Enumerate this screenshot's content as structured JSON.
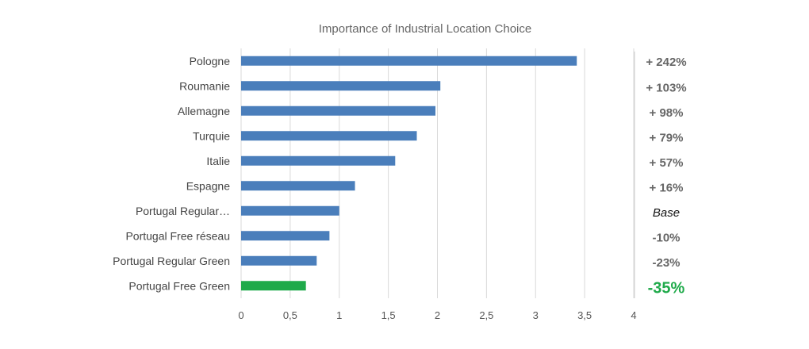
{
  "chart_data": {
    "type": "bar",
    "orientation": "horizontal",
    "title": "Importance of Industrial Location Choice",
    "categories": [
      "Pologne",
      "Roumanie",
      "Allemagne",
      "Turquie",
      "Italie",
      "Espagne",
      "Portugal Regular…",
      "Portugal Free réseau",
      "Portugal Regular Green",
      "Portugal Free Green"
    ],
    "values": [
      3.42,
      2.03,
      1.98,
      1.79,
      1.57,
      1.16,
      1.0,
      0.9,
      0.77,
      0.66
    ],
    "colors": [
      "#4a7ebb",
      "#4a7ebb",
      "#4a7ebb",
      "#4a7ebb",
      "#4a7ebb",
      "#4a7ebb",
      "#4a7ebb",
      "#4a7ebb",
      "#4a7ebb",
      "#1faa4a"
    ],
    "annotations": [
      "+ 242%",
      "+ 103%",
      "+ 98%",
      "+ 79%",
      "+ 57%",
      "+ 16%",
      "Base",
      "-10%",
      "-23%",
      "-35%"
    ],
    "annotation_styles": [
      "normal",
      "normal",
      "normal",
      "normal",
      "normal",
      "normal",
      "base",
      "normal",
      "normal",
      "highlight"
    ],
    "xlim": [
      0,
      4
    ],
    "xticks": [
      "0",
      "0,5",
      "1",
      "1,5",
      "2",
      "2,5",
      "3",
      "3,5",
      "4"
    ],
    "xtick_values": [
      0,
      0.5,
      1,
      1.5,
      2,
      2.5,
      3,
      3.5,
      4
    ],
    "xlabel": "",
    "ylabel": "",
    "grid": true,
    "legend": "none"
  }
}
